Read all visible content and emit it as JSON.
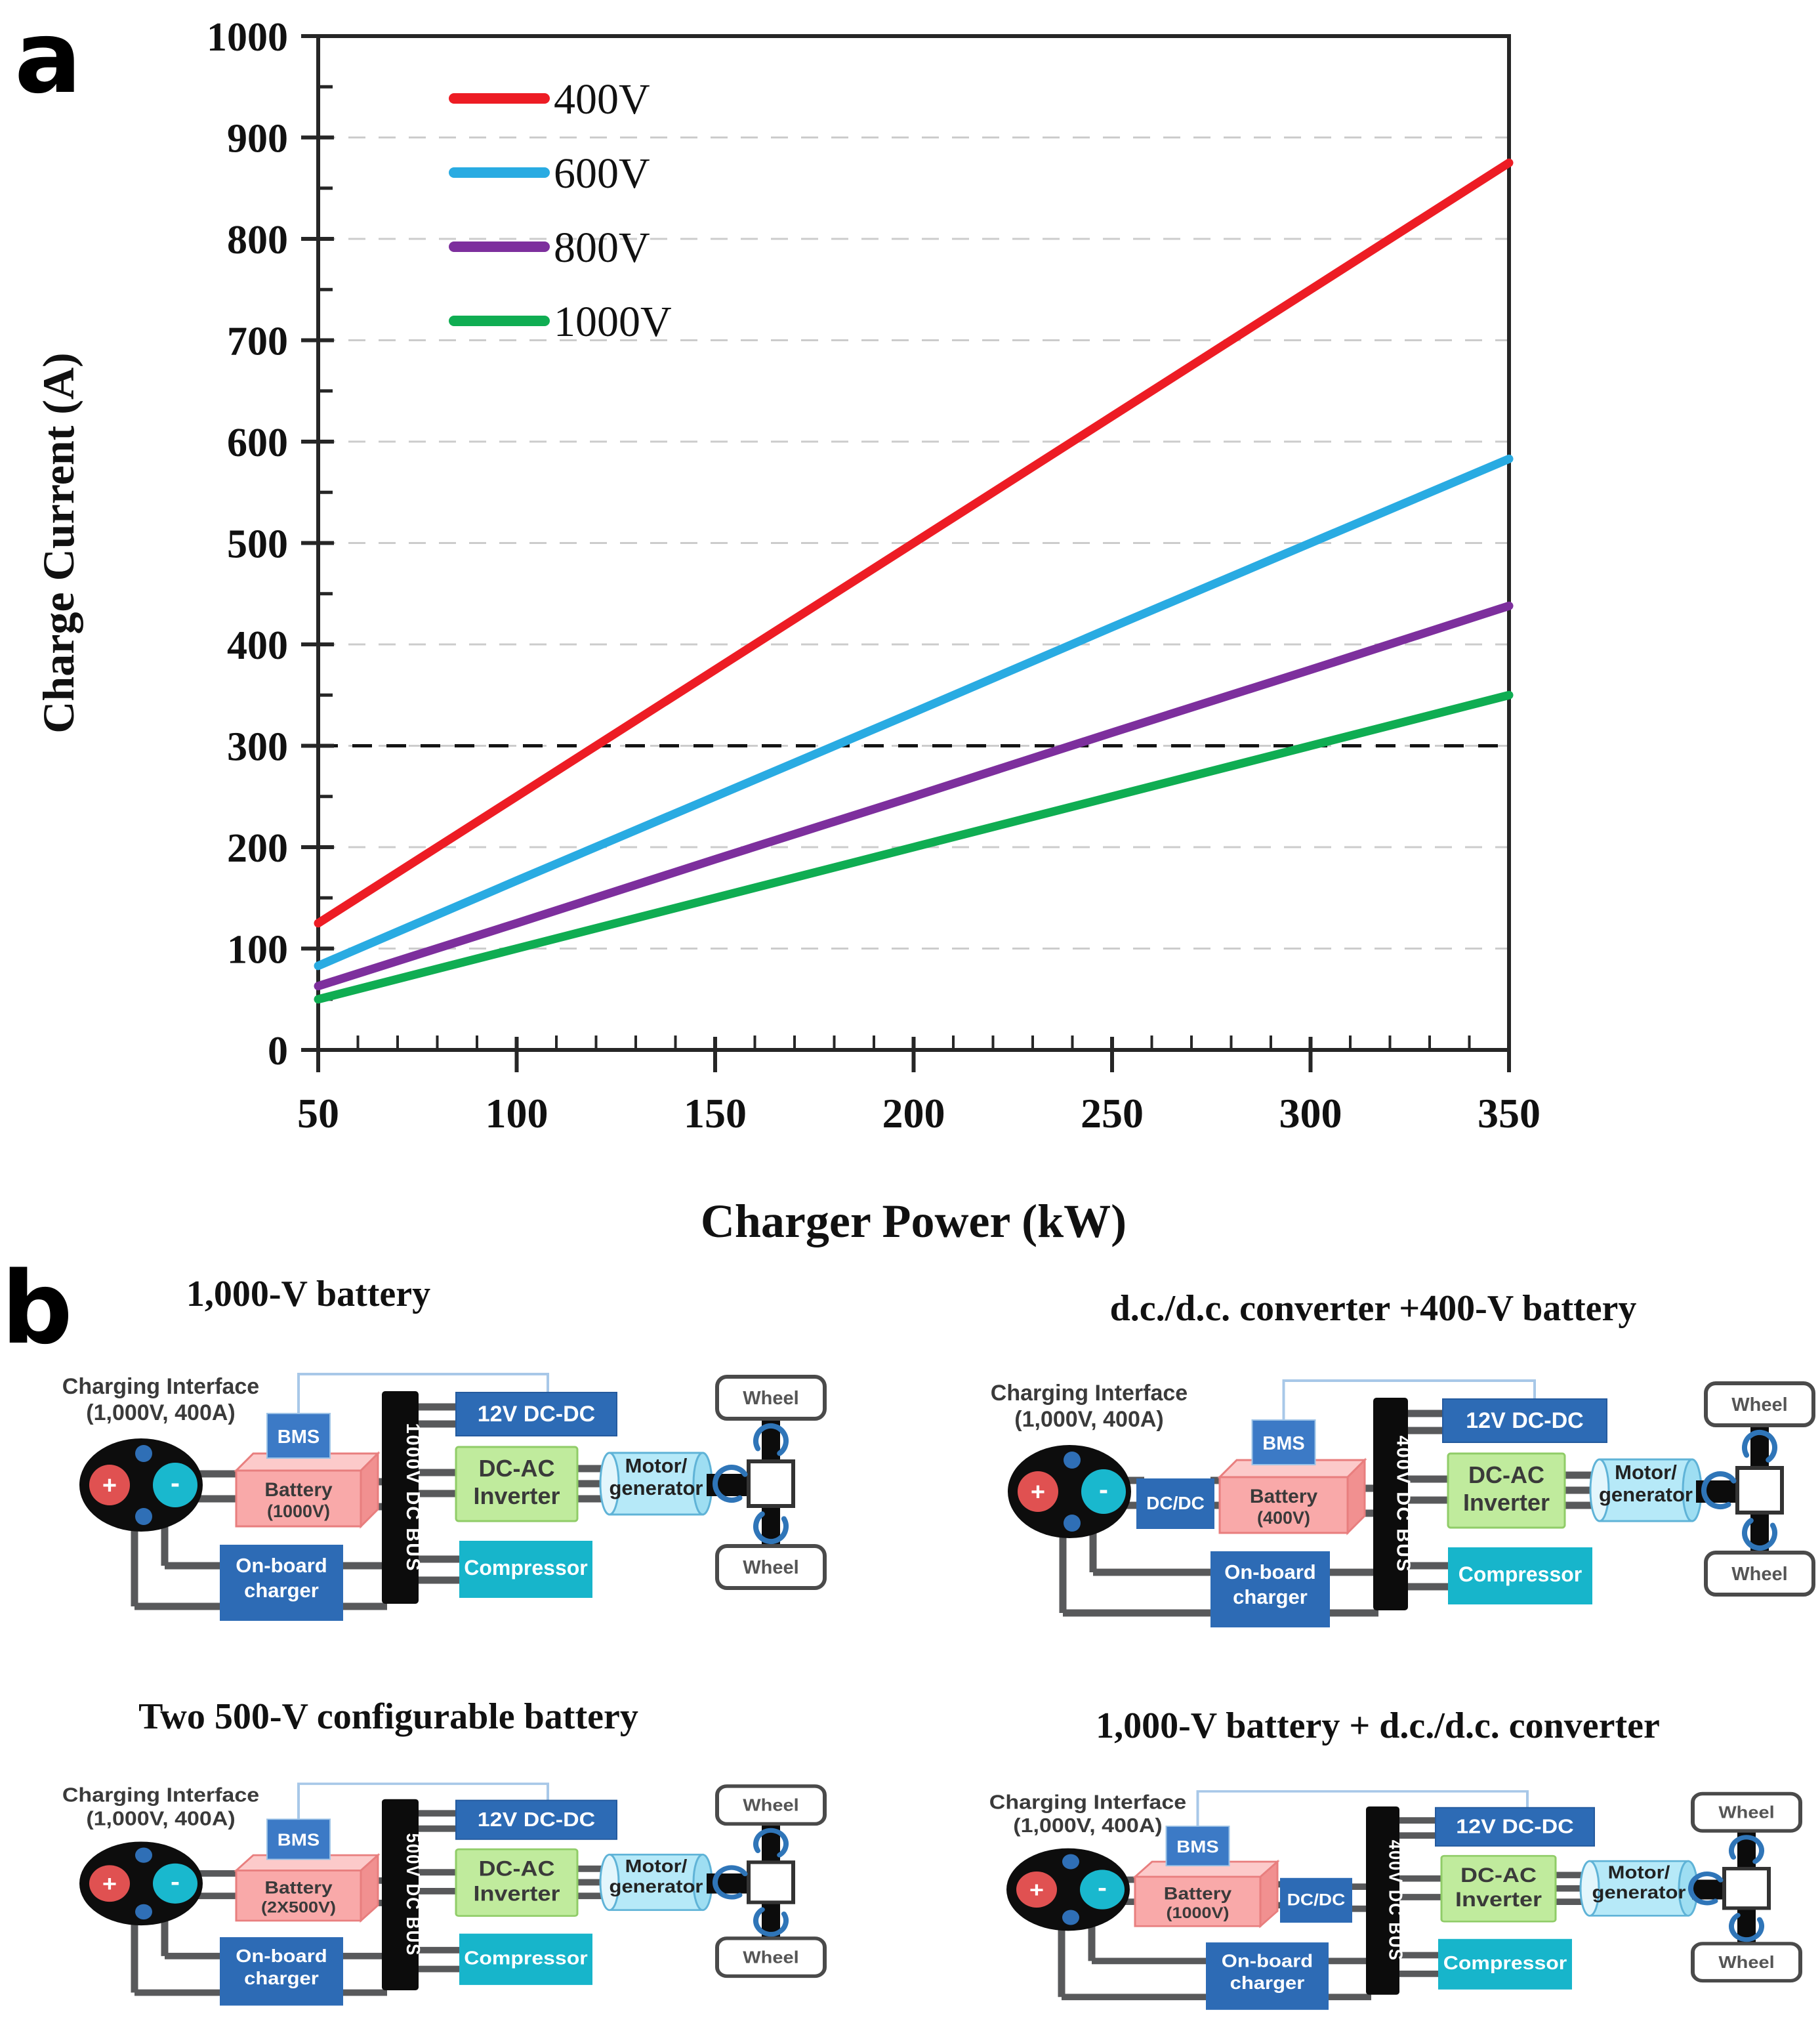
{
  "panel_a": {
    "label": "a"
  },
  "chart_data": {
    "type": "line",
    "title": "",
    "xlabel": "Charger Power (kW)",
    "ylabel": "Charge Current (A)",
    "xlim": [
      50,
      350
    ],
    "ylim": [
      0,
      1000
    ],
    "x_ticks": [
      50,
      100,
      150,
      200,
      250,
      300,
      350
    ],
    "y_ticks": [
      0,
      100,
      200,
      300,
      400,
      500,
      600,
      700,
      800,
      900,
      1000
    ],
    "x_minor_step": 10,
    "y_minor_step": 50,
    "grid": "horizontal-dashed",
    "grid_color": "#cccccc",
    "axis_color": "#262626",
    "x": [
      50,
      100,
      150,
      200,
      250,
      300,
      350
    ],
    "series": [
      {
        "name": "400V",
        "color": "#ED1C24",
        "values": [
          125,
          250,
          375,
          500,
          625,
          750,
          875
        ]
      },
      {
        "name": "600V",
        "color": "#29ABE2",
        "values": [
          83,
          167,
          250,
          333,
          417,
          500,
          583
        ]
      },
      {
        "name": "800V",
        "color": "#7D2F9D",
        "values": [
          63,
          125,
          188,
          250,
          313,
          375,
          438
        ]
      },
      {
        "name": "1000V",
        "color": "#0FAD52",
        "values": [
          50,
          100,
          150,
          200,
          250,
          300,
          350
        ]
      }
    ],
    "reference_line": {
      "y": 300,
      "style": "dashed",
      "color": "#141414"
    },
    "legend_position": "top-left-inside"
  },
  "panel_b": {
    "label": "b",
    "shared": {
      "charging_interface_line1": "Charging Interface",
      "charging_interface_line2": "(1,000V, 400A)",
      "plus": "+",
      "minus": "-",
      "bms": "BMS",
      "dcdc": "DC/DC",
      "dc12": "12V DC-DC",
      "inverter_line1": "DC-AC",
      "inverter_line2": "Inverter",
      "motor_line1": "Motor/",
      "motor_line2": "generator",
      "compressor": "Compressor",
      "charger_line1": "On-board",
      "charger_line2": "charger",
      "wheel": "Wheel",
      "battery_word": "Battery"
    },
    "diagrams": [
      {
        "title": "1,000-V battery",
        "battery_rating": "(1000V)",
        "bus": "1000V DC BUS",
        "dcdc_position": "none"
      },
      {
        "title": "d.c./d.c. converter +400-V battery",
        "battery_rating": "(400V)",
        "bus": "400V DC BUS",
        "dcdc_position": "before"
      },
      {
        "title": "Two 500-V configurable battery",
        "battery_rating": "(2X500V)",
        "bus": "500V DC BUS",
        "dcdc_position": "none"
      },
      {
        "title": "1,000-V battery + d.c./d.c. converter",
        "battery_rating": "(1000V)",
        "bus": "400V DC BUS",
        "dcdc_position": "after"
      }
    ],
    "colors": {
      "box_blue": "#2D6BB5",
      "bms_blue": "#3C7AC6",
      "bus_black": "#0C0C0C",
      "battery_front": "#F9A9A9",
      "battery_top": "#FCCACA",
      "battery_side": "#F19090",
      "battery_stroke": "#E87E7E",
      "inverter_fill": "#C0EB9D",
      "inverter_stroke": "#90CC68",
      "motor_fill": "#B6E9F8",
      "motor_cap_light": "#E3F6FC",
      "motor_cap_dark": "#9EDEF2",
      "motor_stroke": "#5FB3D7",
      "compressor_fill": "#17B5CB",
      "line_gray": "#58595B",
      "wire_blue": "#A8C8E8",
      "arrow_blue": "#2F75B8",
      "connector_plus_red": "#E05151",
      "connector_minus_cyan": "#19B8CE",
      "connector_pin_blue": "#2F6FB6",
      "wheel_stroke": "#4A4A4A",
      "text_dark": "#3A3A3A"
    }
  }
}
